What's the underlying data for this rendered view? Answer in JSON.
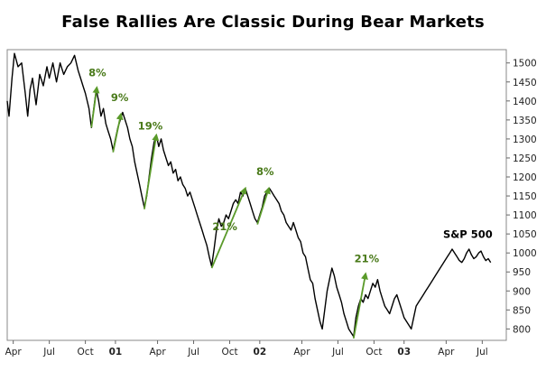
{
  "chart_data": {
    "type": "line",
    "title": "False Rallies Are Classic During Bear Markets",
    "series_label": "S&P 500",
    "ylim": [
      770,
      1535
    ],
    "yticks": [
      800,
      850,
      900,
      950,
      1000,
      1050,
      1100,
      1150,
      1200,
      1250,
      1300,
      1350,
      1400,
      1450,
      1500
    ],
    "xlim": [
      0,
      41.5
    ],
    "xticks": [
      {
        "m": 0.5,
        "label": "Apr",
        "bold": false
      },
      {
        "m": 3.5,
        "label": "Jul",
        "bold": false
      },
      {
        "m": 6.5,
        "label": "Oct",
        "bold": false
      },
      {
        "m": 9.0,
        "label": "01",
        "bold": true
      },
      {
        "m": 12.5,
        "label": "Apr",
        "bold": false
      },
      {
        "m": 15.5,
        "label": "Jul",
        "bold": false
      },
      {
        "m": 18.5,
        "label": "Oct",
        "bold": false
      },
      {
        "m": 21.0,
        "label": "02",
        "bold": true
      },
      {
        "m": 24.5,
        "label": "Apr",
        "bold": false
      },
      {
        "m": 27.5,
        "label": "Jul",
        "bold": false
      },
      {
        "m": 30.5,
        "label": "Oct",
        "bold": false
      },
      {
        "m": 33.0,
        "label": "03",
        "bold": true
      },
      {
        "m": 36.5,
        "label": "Apr",
        "bold": false
      },
      {
        "m": 39.5,
        "label": "Jul",
        "bold": false
      }
    ],
    "points": [
      [
        0.0,
        1400
      ],
      [
        0.15,
        1360
      ],
      [
        0.4,
        1460
      ],
      [
        0.6,
        1525
      ],
      [
        0.9,
        1490
      ],
      [
        1.2,
        1500
      ],
      [
        1.5,
        1420
      ],
      [
        1.7,
        1360
      ],
      [
        1.9,
        1430
      ],
      [
        2.1,
        1460
      ],
      [
        2.4,
        1390
      ],
      [
        2.7,
        1470
      ],
      [
        3.0,
        1440
      ],
      [
        3.3,
        1490
      ],
      [
        3.5,
        1460
      ],
      [
        3.8,
        1500
      ],
      [
        4.1,
        1450
      ],
      [
        4.4,
        1500
      ],
      [
        4.7,
        1470
      ],
      [
        5.0,
        1490
      ],
      [
        5.3,
        1500
      ],
      [
        5.6,
        1520
      ],
      [
        5.9,
        1480
      ],
      [
        6.1,
        1460
      ],
      [
        6.3,
        1440
      ],
      [
        6.5,
        1420
      ],
      [
        6.8,
        1380
      ],
      [
        7.0,
        1330
      ],
      [
        7.2,
        1380
      ],
      [
        7.4,
        1430
      ],
      [
        7.6,
        1400
      ],
      [
        7.8,
        1360
      ],
      [
        8.0,
        1380
      ],
      [
        8.2,
        1340
      ],
      [
        8.4,
        1320
      ],
      [
        8.6,
        1300
      ],
      [
        8.8,
        1270
      ],
      [
        9.0,
        1300
      ],
      [
        9.2,
        1330
      ],
      [
        9.4,
        1350
      ],
      [
        9.6,
        1370
      ],
      [
        9.8,
        1350
      ],
      [
        10.0,
        1330
      ],
      [
        10.2,
        1300
      ],
      [
        10.4,
        1280
      ],
      [
        10.6,
        1240
      ],
      [
        10.8,
        1210
      ],
      [
        11.0,
        1180
      ],
      [
        11.2,
        1150
      ],
      [
        11.4,
        1120
      ],
      [
        11.6,
        1150
      ],
      [
        11.8,
        1200
      ],
      [
        12.0,
        1250
      ],
      [
        12.2,
        1290
      ],
      [
        12.4,
        1310
      ],
      [
        12.6,
        1280
      ],
      [
        12.8,
        1300
      ],
      [
        13.0,
        1270
      ],
      [
        13.2,
        1250
      ],
      [
        13.4,
        1230
      ],
      [
        13.6,
        1240
      ],
      [
        13.8,
        1210
      ],
      [
        14.0,
        1220
      ],
      [
        14.2,
        1190
      ],
      [
        14.4,
        1200
      ],
      [
        14.6,
        1180
      ],
      [
        14.8,
        1170
      ],
      [
        15.0,
        1150
      ],
      [
        15.2,
        1160
      ],
      [
        15.4,
        1140
      ],
      [
        15.6,
        1120
      ],
      [
        15.8,
        1100
      ],
      [
        16.0,
        1080
      ],
      [
        16.2,
        1060
      ],
      [
        16.4,
        1040
      ],
      [
        16.6,
        1020
      ],
      [
        16.8,
        990
      ],
      [
        17.0,
        965
      ],
      [
        17.2,
        1010
      ],
      [
        17.4,
        1060
      ],
      [
        17.6,
        1090
      ],
      [
        17.8,
        1070
      ],
      [
        18.0,
        1080
      ],
      [
        18.2,
        1100
      ],
      [
        18.4,
        1090
      ],
      [
        18.6,
        1110
      ],
      [
        18.8,
        1130
      ],
      [
        19.0,
        1140
      ],
      [
        19.2,
        1130
      ],
      [
        19.4,
        1160
      ],
      [
        19.6,
        1150
      ],
      [
        19.8,
        1170
      ],
      [
        20.0,
        1150
      ],
      [
        20.2,
        1130
      ],
      [
        20.4,
        1110
      ],
      [
        20.6,
        1090
      ],
      [
        20.8,
        1080
      ],
      [
        21.0,
        1100
      ],
      [
        21.2,
        1120
      ],
      [
        21.4,
        1150
      ],
      [
        21.6,
        1160
      ],
      [
        21.8,
        1170
      ],
      [
        22.0,
        1160
      ],
      [
        22.2,
        1150
      ],
      [
        22.4,
        1140
      ],
      [
        22.6,
        1130
      ],
      [
        22.8,
        1110
      ],
      [
        23.0,
        1100
      ],
      [
        23.2,
        1080
      ],
      [
        23.4,
        1070
      ],
      [
        23.6,
        1060
      ],
      [
        23.8,
        1080
      ],
      [
        24.0,
        1060
      ],
      [
        24.2,
        1040
      ],
      [
        24.4,
        1030
      ],
      [
        24.6,
        1000
      ],
      [
        24.8,
        990
      ],
      [
        25.0,
        960
      ],
      [
        25.2,
        930
      ],
      [
        25.4,
        920
      ],
      [
        25.6,
        880
      ],
      [
        25.8,
        850
      ],
      [
        26.0,
        820
      ],
      [
        26.2,
        800
      ],
      [
        26.4,
        850
      ],
      [
        26.6,
        900
      ],
      [
        26.8,
        930
      ],
      [
        27.0,
        960
      ],
      [
        27.2,
        940
      ],
      [
        27.4,
        910
      ],
      [
        27.6,
        890
      ],
      [
        27.8,
        870
      ],
      [
        28.0,
        840
      ],
      [
        28.2,
        820
      ],
      [
        28.4,
        800
      ],
      [
        28.6,
        790
      ],
      [
        28.8,
        780
      ],
      [
        29.0,
        830
      ],
      [
        29.2,
        860
      ],
      [
        29.4,
        880
      ],
      [
        29.6,
        870
      ],
      [
        29.8,
        890
      ],
      [
        30.0,
        880
      ],
      [
        30.2,
        900
      ],
      [
        30.4,
        920
      ],
      [
        30.6,
        910
      ],
      [
        30.8,
        930
      ],
      [
        31.0,
        900
      ],
      [
        31.2,
        880
      ],
      [
        31.4,
        860
      ],
      [
        31.6,
        850
      ],
      [
        31.8,
        840
      ],
      [
        32.0,
        860
      ],
      [
        32.2,
        880
      ],
      [
        32.4,
        890
      ],
      [
        32.6,
        870
      ],
      [
        32.8,
        850
      ],
      [
        33.0,
        830
      ],
      [
        33.2,
        820
      ],
      [
        33.4,
        810
      ],
      [
        33.6,
        800
      ],
      [
        33.8,
        830
      ],
      [
        34.0,
        860
      ],
      [
        34.2,
        870
      ],
      [
        34.4,
        880
      ],
      [
        34.6,
        890
      ],
      [
        34.8,
        900
      ],
      [
        35.0,
        910
      ],
      [
        35.2,
        920
      ],
      [
        35.4,
        930
      ],
      [
        35.6,
        940
      ],
      [
        35.8,
        950
      ],
      [
        36.0,
        960
      ],
      [
        36.2,
        970
      ],
      [
        36.4,
        980
      ],
      [
        36.6,
        990
      ],
      [
        36.8,
        1000
      ],
      [
        37.0,
        1010
      ],
      [
        37.2,
        1000
      ],
      [
        37.4,
        990
      ],
      [
        37.6,
        980
      ],
      [
        37.8,
        975
      ],
      [
        38.0,
        985
      ],
      [
        38.2,
        1000
      ],
      [
        38.4,
        1010
      ],
      [
        38.6,
        995
      ],
      [
        38.8,
        985
      ],
      [
        39.0,
        990
      ],
      [
        39.2,
        1000
      ],
      [
        39.4,
        1005
      ],
      [
        39.6,
        990
      ],
      [
        39.8,
        980
      ],
      [
        40.0,
        985
      ],
      [
        40.2,
        975
      ]
    ],
    "rallies": [
      {
        "label": "8%",
        "from": [
          7.0,
          1330
        ],
        "to": [
          7.45,
          1435
        ],
        "label_at": [
          7.5,
          1465
        ]
      },
      {
        "label": "9%",
        "from": [
          8.8,
          1265
        ],
        "to": [
          9.45,
          1365
        ],
        "label_at": [
          9.35,
          1400
        ]
      },
      {
        "label": "19%",
        "from": [
          11.4,
          1115
        ],
        "to": [
          12.4,
          1310
        ],
        "label_at": [
          11.9,
          1325
        ]
      },
      {
        "label": "21%",
        "from": [
          17.0,
          960
        ],
        "to": [
          19.8,
          1170
        ],
        "label_at": [
          18.1,
          1060
        ]
      },
      {
        "label": "8%",
        "from": [
          20.8,
          1075
        ],
        "to": [
          21.75,
          1170
        ],
        "label_at": [
          21.45,
          1205
        ]
      },
      {
        "label": "21%",
        "from": [
          28.8,
          775
        ],
        "to": [
          29.8,
          945
        ],
        "label_at": [
          29.9,
          975
        ]
      }
    ]
  }
}
